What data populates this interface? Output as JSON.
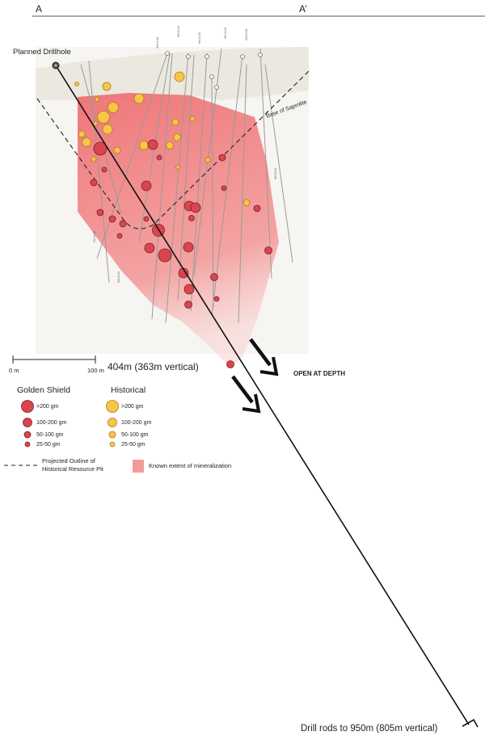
{
  "section": {
    "start_label": "A",
    "end_label": "A’"
  },
  "drillhole": {
    "planned_label": "Planned Drillhole",
    "intercept_label": "404m (363m vertical)",
    "end_label": "Drill rods to 950m (805m vertical)"
  },
  "saprolite_label": "Base of Saprolite",
  "depth_label": "OPEN AT DEPTH",
  "scale": {
    "zero": "0 m",
    "max": "100 m"
  },
  "legend": {
    "golden_shield": {
      "title": "Golden Shield",
      "color": "#d9464f",
      "items": [
        ">200 gm",
        "100-200 gm",
        "50-100 gm",
        "25-50 gm"
      ]
    },
    "historical": {
      "title": "Historical",
      "color": "#f7c548",
      "items": [
        ">200 gm",
        "100-200 gm",
        "50-100 gm",
        "25-50 gm"
      ]
    },
    "pit_outline": "Projected Outline of Historical Resource Pit",
    "mineralization": {
      "label": "Known extent of mineralization",
      "color": "#f29b9b"
    }
  },
  "colors": {
    "saprolite": "#ebe8e0",
    "hole_trace": "#9a9a9a",
    "planned": "#111111"
  }
}
